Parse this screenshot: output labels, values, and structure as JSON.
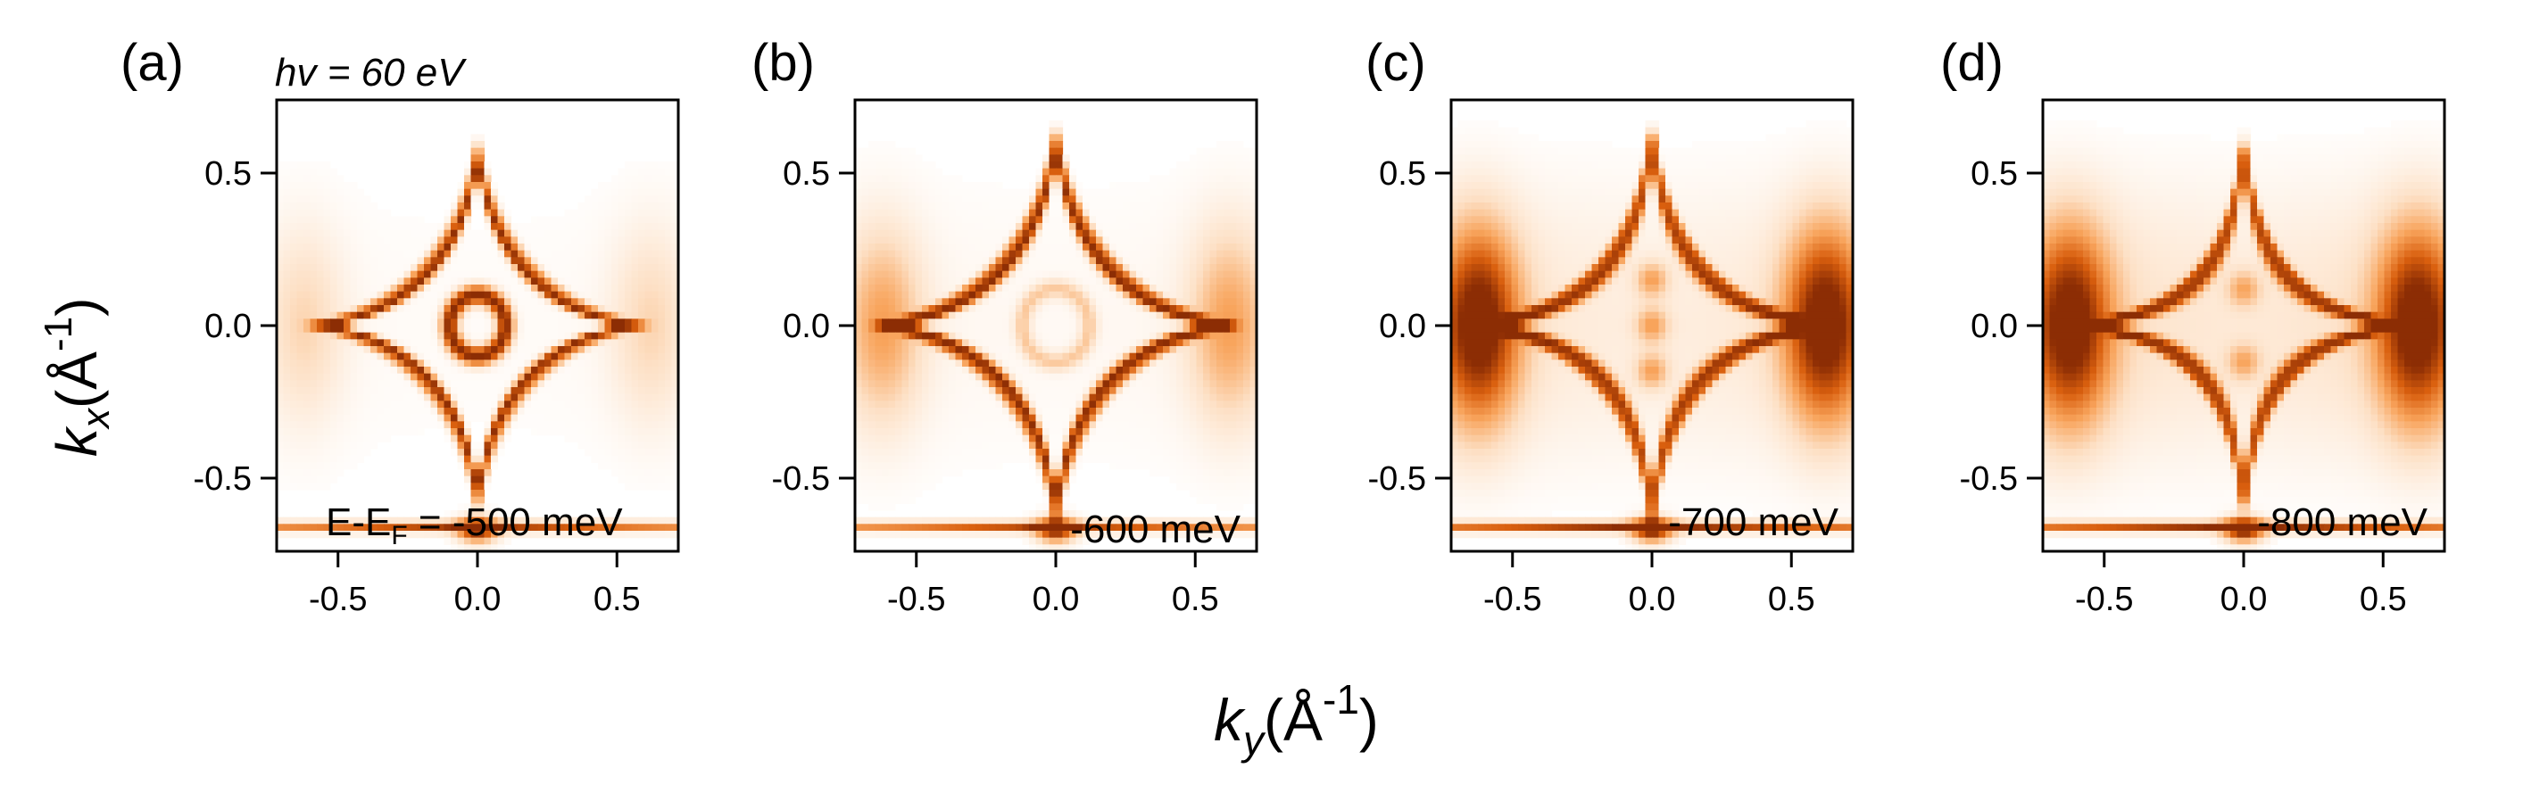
{
  "figure": {
    "shared_xlabel": "k",
    "shared_xlabel_sub": "y",
    "shared_ylabel": "k",
    "shared_ylabel_sub": "x",
    "unit_main": "(Å",
    "unit_sup": "-1",
    "unit_close": ")",
    "photon_energy_prefix": "hv",
    "photon_energy_value": " = 60 eV"
  },
  "chart_data": [
    {
      "type": "heatmap",
      "panel_label": "(a)",
      "energy_prefix": "E-E",
      "energy_sub": "F",
      "energy_label": " = -500 meV",
      "xlim": [
        -0.72,
        0.72
      ],
      "ylim": [
        -0.74,
        0.74
      ],
      "xticks": [
        -0.5,
        0.0,
        0.5
      ],
      "xtick_labels": [
        "-0.5",
        "0.0",
        "0.5"
      ],
      "yticks": [
        0.5,
        0.0,
        -0.5
      ],
      "ytick_labels": [
        "0.5",
        "0.0",
        "-0.5"
      ],
      "colormap": [
        "#ffffff",
        "#fde0c5",
        "#f8a45c",
        "#d95f0e",
        "#8c2d04"
      ],
      "features": {
        "diamond_apex": 0.62,
        "diamond_concavity": 0.55,
        "diamond_width": 0.038,
        "diamond_strength": 0.95,
        "ring_radius": 0.1,
        "ring_strength": 1.0,
        "dots": [],
        "dot_strength": 0,
        "pocket_strength": 0.25,
        "edge_line_strength": 0.9,
        "haze": 0.05
      }
    },
    {
      "type": "heatmap",
      "panel_label": "(b)",
      "energy_label": "-600 meV",
      "xlim": [
        -0.72,
        0.72
      ],
      "ylim": [
        -0.74,
        0.74
      ],
      "xticks": [
        -0.5,
        0.0,
        0.5
      ],
      "xtick_labels": [
        "-0.5",
        "0.0",
        "0.5"
      ],
      "yticks": [
        0.5,
        0.0,
        -0.5
      ],
      "ytick_labels": [
        "0.5",
        "0.0",
        "-0.5"
      ],
      "colormap": [
        "#ffffff",
        "#fde0c5",
        "#f8a45c",
        "#d95f0e",
        "#8c2d04"
      ],
      "features": {
        "diamond_apex": 0.66,
        "diamond_concavity": 0.55,
        "diamond_width": 0.045,
        "diamond_strength": 0.95,
        "ring_radius": 0.12,
        "ring_strength": 0.3,
        "dots": [],
        "dot_strength": 0,
        "pocket_strength": 0.45,
        "edge_line_strength": 0.85,
        "haze": 0.08
      }
    },
    {
      "type": "heatmap",
      "panel_label": "(c)",
      "energy_label": "-700 meV",
      "xlim": [
        -0.72,
        0.72
      ],
      "ylim": [
        -0.74,
        0.74
      ],
      "xticks": [
        -0.5,
        0.0,
        0.5
      ],
      "xtick_labels": [
        "-0.5",
        "0.0",
        "0.5"
      ],
      "yticks": [
        0.5,
        0.0,
        -0.5
      ],
      "ytick_labels": [
        "0.5",
        "0.0",
        "-0.5"
      ],
      "colormap": [
        "#ffffff",
        "#fde0c5",
        "#f8a45c",
        "#d95f0e",
        "#8c2d04"
      ],
      "features": {
        "diamond_apex": 0.7,
        "diamond_concavity": 0.5,
        "diamond_width": 0.06,
        "diamond_strength": 0.8,
        "ring_radius": 0,
        "ring_strength": 0,
        "dots": [
          -0.15,
          0.0,
          0.15
        ],
        "dot_strength": 0.4,
        "pocket_strength": 1.0,
        "edge_line_strength": 1.0,
        "haze": 0.22
      }
    },
    {
      "type": "heatmap",
      "panel_label": "(d)",
      "energy_label": "-800 meV",
      "xlim": [
        -0.72,
        0.72
      ],
      "ylim": [
        -0.74,
        0.74
      ],
      "xticks": [
        -0.5,
        0.0,
        0.5
      ],
      "xtick_labels": [
        "-0.5",
        "0.0",
        "0.5"
      ],
      "yticks": [
        0.5,
        0.0,
        -0.5
      ],
      "ytick_labels": [
        "0.5",
        "0.0",
        "-0.5"
      ],
      "colormap": [
        "#ffffff",
        "#fde0c5",
        "#f8a45c",
        "#d95f0e",
        "#8c2d04"
      ],
      "features": {
        "diamond_apex": 0.72,
        "diamond_concavity": 0.45,
        "diamond_width": 0.07,
        "diamond_strength": 0.75,
        "ring_radius": 0,
        "ring_strength": 0,
        "dots": [
          -0.12,
          0.12
        ],
        "dot_strength": 0.35,
        "pocket_strength": 0.95,
        "edge_line_strength": 1.0,
        "haze": 0.28
      }
    }
  ]
}
